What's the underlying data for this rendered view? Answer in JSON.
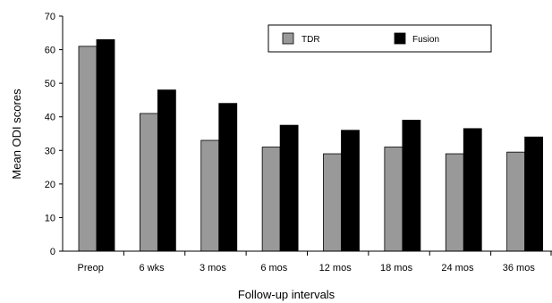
{
  "chart_data": {
    "type": "bar",
    "title": "",
    "xlabel": "Follow-up intervals",
    "ylabel": "Mean ODI scores",
    "ylim": [
      0,
      70
    ],
    "yticks": [
      0,
      10,
      20,
      30,
      40,
      50,
      60,
      70
    ],
    "categories": [
      "Preop",
      "6 wks",
      "3 mos",
      "6 mos",
      "12 mos",
      "18 mos",
      "24 mos",
      "36 mos"
    ],
    "series": [
      {
        "name": "TDR",
        "color": "#999999",
        "values": [
          61,
          41,
          33,
          31,
          29,
          31,
          29,
          29.5
        ]
      },
      {
        "name": "Fusion",
        "color": "#000000",
        "values": [
          63,
          48,
          44,
          37.5,
          36,
          39,
          36.5,
          34
        ]
      }
    ],
    "grid": false,
    "legend_position": "top-right"
  }
}
